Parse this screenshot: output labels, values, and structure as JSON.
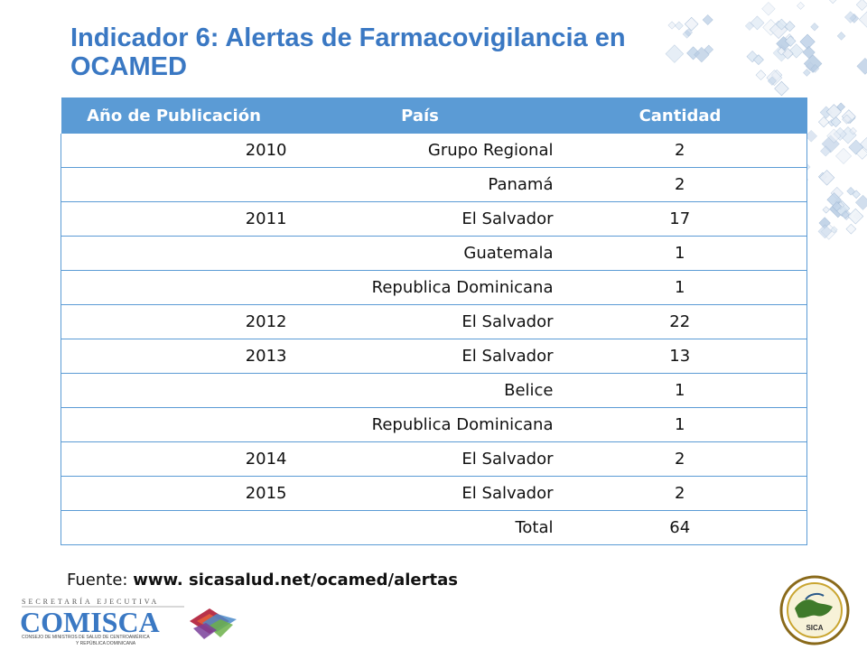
{
  "slide": {
    "title": "Indicador 6: Alertas de Farmacovigilancia en OCAMED"
  },
  "table": {
    "headers": [
      "Año de Publicación",
      "País",
      "Cantidad"
    ],
    "rows": [
      {
        "year": "2010",
        "country": "Grupo Regional",
        "qty": "2"
      },
      {
        "year": "",
        "country": "Panamá",
        "qty": "2"
      },
      {
        "year": "2011",
        "country": "El Salvador",
        "qty": "17"
      },
      {
        "year": "",
        "country": "Guatemala",
        "qty": "1"
      },
      {
        "year": "",
        "country": "Republica Dominicana",
        "qty": "1"
      },
      {
        "year": "2012",
        "country": "El Salvador",
        "qty": "22"
      },
      {
        "year": "2013",
        "country": "El Salvador",
        "qty": "13"
      },
      {
        "year": "",
        "country": "Belice",
        "qty": "1"
      },
      {
        "year": "",
        "country": "Republica Dominicana",
        "qty": "1"
      },
      {
        "year": "2014",
        "country": "El Salvador",
        "qty": "2"
      },
      {
        "year": "2015",
        "country": "El Salvador",
        "qty": "2"
      },
      {
        "year": "",
        "country": "Total",
        "qty": "64"
      }
    ]
  },
  "source": {
    "label": "Fuente: ",
    "url": "www. sicasalud.net/ocamed/alertas"
  },
  "logos": {
    "left_top": "SECRETARÍA EJECUTIVA",
    "left_name": "COMISCA",
    "left_sub1": "CONSEJO DE MINISTROS DE SALUD DE CENTROAMÉRICA",
    "left_sub2": "Y REPÚBLICA DOMINICANA",
    "right_name": "SICA"
  },
  "colors": {
    "title": "#3a78c3",
    "header_bg": "#5b9bd5",
    "border": "#5b9bd5"
  }
}
